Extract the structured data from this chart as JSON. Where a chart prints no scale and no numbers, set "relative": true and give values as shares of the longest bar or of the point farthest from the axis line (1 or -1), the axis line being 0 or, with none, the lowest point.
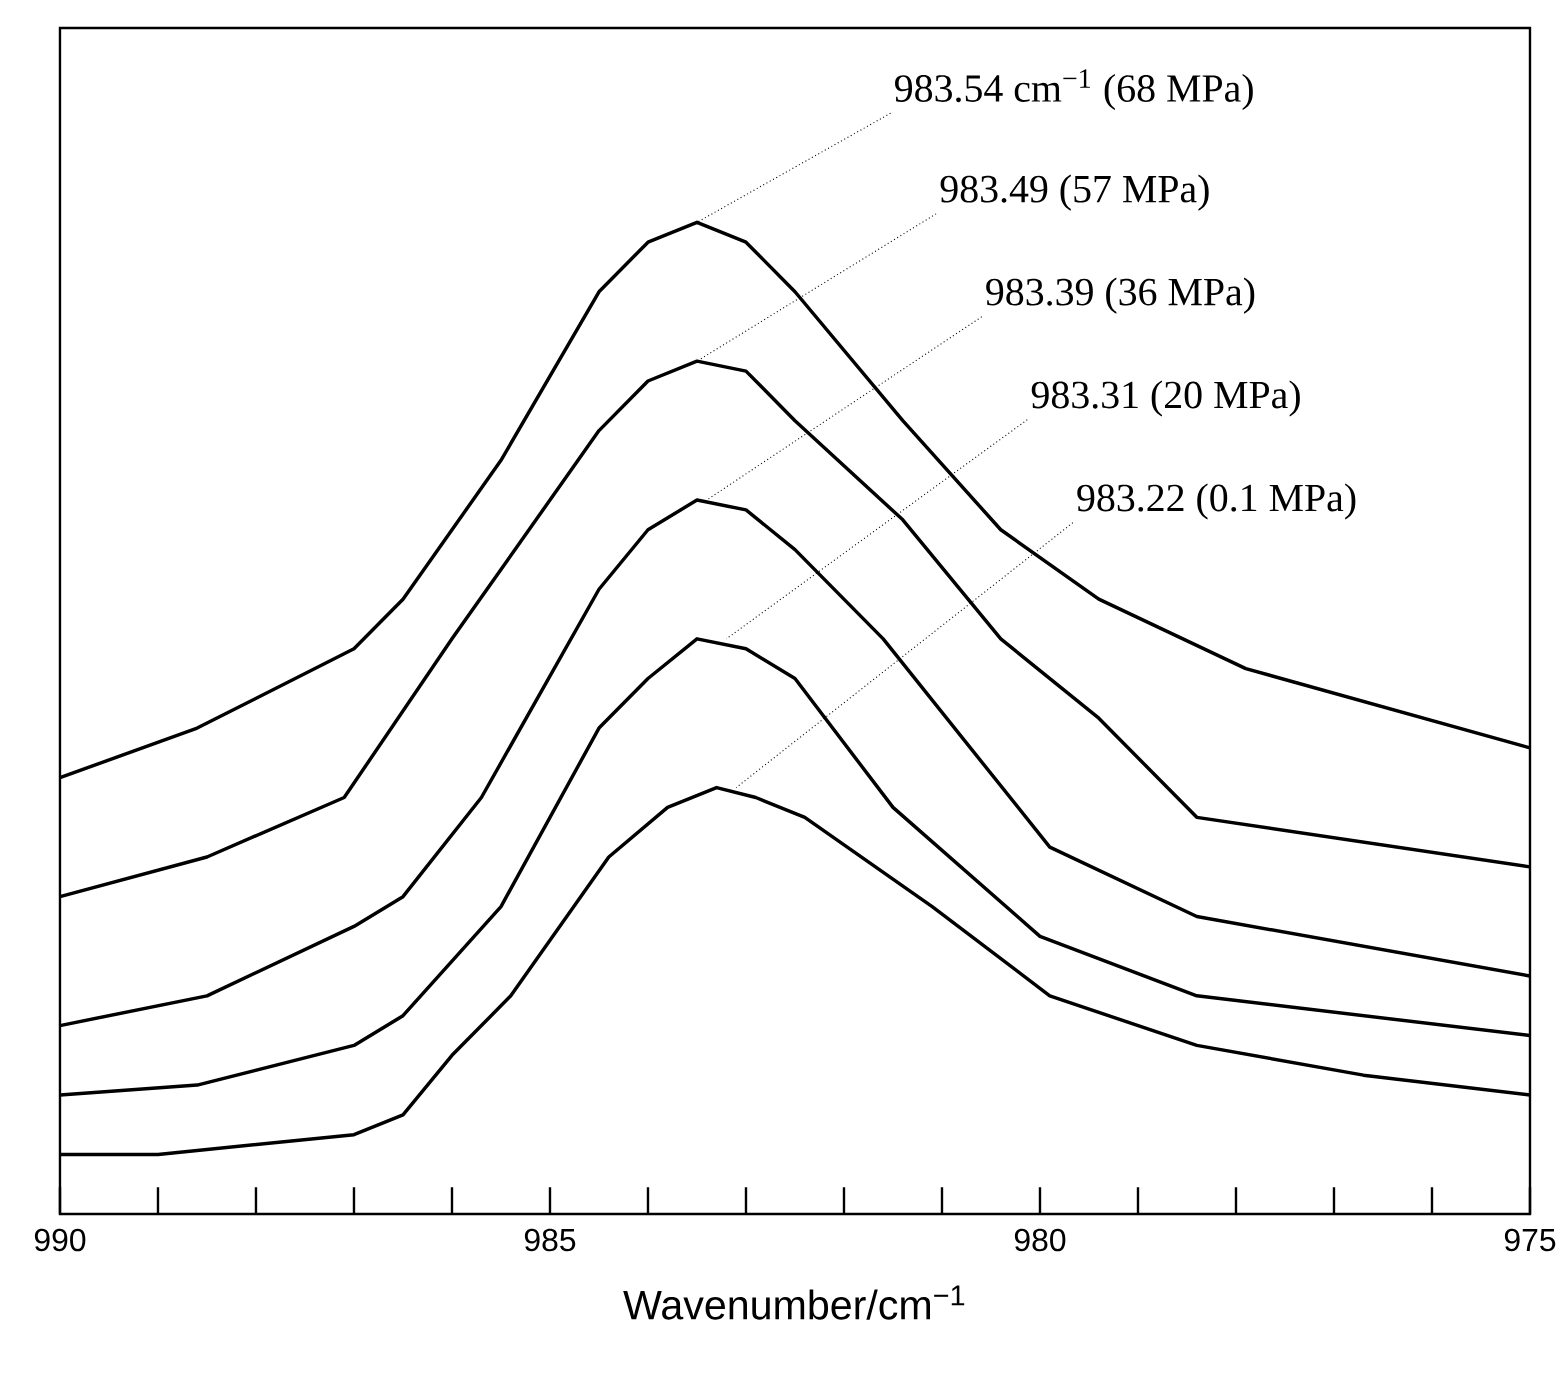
{
  "chart_data": {
    "type": "line",
    "relative": true,
    "xlabel": "Wavenumber/cm$^{−1}$",
    "xlim": [
      990,
      975
    ],
    "xticks": [
      990,
      {
        "value": 989,
        "label": null
      },
      {
        "value": 988,
        "label": null
      },
      {
        "value": 987,
        "label": null
      },
      {
        "value": 986,
        "label": null
      },
      985,
      {
        "value": 984,
        "label": null
      },
      {
        "value": 983,
        "label": null
      },
      {
        "value": 982,
        "label": null
      },
      {
        "value": 981,
        "label": null
      },
      980,
      {
        "value": 979,
        "label": null
      },
      {
        "value": 978,
        "label": null
      },
      {
        "value": 977,
        "label": null
      },
      {
        "value": 976,
        "label": null
      },
      975
    ],
    "tick_labels": "x",
    "marker": "none",
    "line_style": "solid",
    "series": [
      {
        "color": "#000000",
        "x": [
          990,
          988.6,
          987.0,
          986.5,
          985.5,
          984.5,
          984.0,
          983.5,
          983.0,
          982.5,
          981.4,
          980.4,
          979.4,
          977.9,
          975
        ],
        "values": [
          0.44,
          0.49,
          0.57,
          0.62,
          0.76,
          0.93,
          0.98,
          1.0,
          0.98,
          0.93,
          0.8,
          0.69,
          0.62,
          0.55,
          0.47
        ]
      },
      {
        "color": "#000000",
        "x": [
          990,
          988.5,
          987.1,
          986.0,
          984.5,
          984.0,
          983.5,
          983.0,
          982.5,
          981.4,
          980.4,
          979.4,
          978.4,
          975
        ],
        "values": [
          0.32,
          0.36,
          0.42,
          0.58,
          0.79,
          0.84,
          0.86,
          0.85,
          0.8,
          0.7,
          0.58,
          0.5,
          0.4,
          0.35
        ]
      },
      {
        "color": "#000000",
        "x": [
          990,
          988.5,
          987.0,
          986.5,
          985.7,
          984.5,
          984.0,
          983.5,
          983.0,
          982.5,
          981.6,
          979.9,
          978.4,
          975
        ],
        "values": [
          0.19,
          0.22,
          0.29,
          0.32,
          0.42,
          0.63,
          0.69,
          0.72,
          0.71,
          0.67,
          0.58,
          0.37,
          0.3,
          0.24
        ]
      },
      {
        "color": "#000000",
        "x": [
          990,
          988.6,
          987.0,
          986.5,
          985.5,
          984.5,
          984.0,
          983.5,
          983.0,
          982.5,
          981.5,
          980.0,
          978.4,
          975
        ],
        "values": [
          0.12,
          0.13,
          0.17,
          0.2,
          0.31,
          0.49,
          0.54,
          0.58,
          0.57,
          0.54,
          0.41,
          0.28,
          0.22,
          0.18
        ]
      },
      {
        "color": "#000000",
        "x": [
          990,
          989,
          988,
          987,
          986.5,
          986,
          985.4,
          984.4,
          983.8,
          983.3,
          982.9,
          982.4,
          981.1,
          979.9,
          978.4,
          976.7,
          975
        ],
        "values": [
          0.06,
          0.06,
          0.07,
          0.08,
          0.1,
          0.16,
          0.22,
          0.36,
          0.41,
          0.43,
          0.42,
          0.4,
          0.31,
          0.22,
          0.17,
          0.14,
          0.12
        ]
      }
    ],
    "annotations": [
      {
        "text": "983.54 cm$^{−1}$ (68 MPa)",
        "x": 983.5,
        "y": 1.0
      },
      {
        "text": "983.49 (57 MPa)",
        "x": 983.5,
        "y": 0.86
      },
      {
        "text": "983.39 (36 MPa)",
        "x": 983.4,
        "y": 0.72
      },
      {
        "text": "983.31 (20 MPa)",
        "x": 983.2,
        "y": 0.58
      },
      {
        "text": "983.22 (0.1 MPa)",
        "x": 983.1,
        "y": 0.43
      }
    ]
  }
}
